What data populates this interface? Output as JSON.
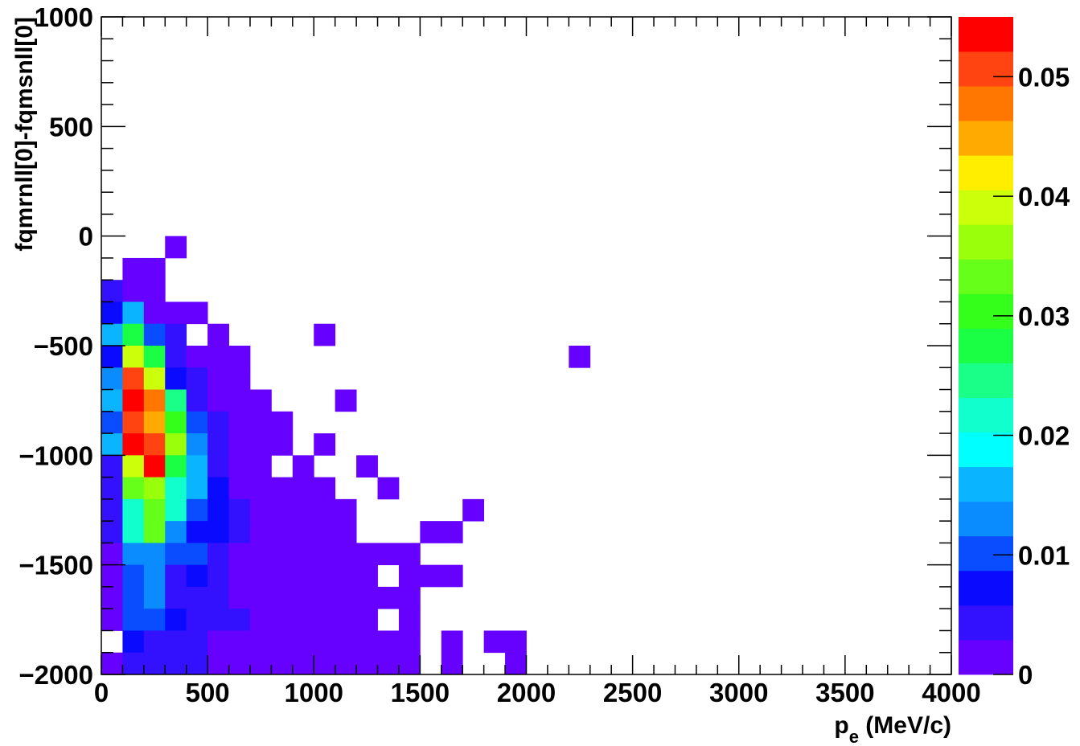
{
  "chart_data": {
    "type": "heatmap",
    "xlabel": "p",
    "xlabel_sub": "e",
    "xlabel_unit": " (MeV/c)",
    "ylabel": "fqmrnll[0]-fqmsnll[0]",
    "x_range": [
      0,
      4000
    ],
    "y_range": [
      -2000,
      1000
    ],
    "bin_width_x": 100,
    "bin_height_y": 100,
    "x_ticks": [
      0,
      500,
      1000,
      1500,
      2000,
      2500,
      3000,
      3500,
      4000
    ],
    "y_ticks": [
      -2000,
      -1500,
      -1000,
      -500,
      0,
      500,
      1000
    ],
    "x_tick_labels": [
      "0",
      "500",
      "1000",
      "1500",
      "2000",
      "2500",
      "3000",
      "3500",
      "4000"
    ],
    "y_tick_labels": [
      "−2000",
      "−1500",
      "−1000",
      "−500",
      "0",
      "500",
      "1000"
    ],
    "z_range": [
      0,
      0.055
    ],
    "z_ticks": [
      0,
      0.01,
      0.02,
      0.03,
      0.04,
      0.05
    ],
    "z_tick_labels": [
      "0",
      "0.01",
      "0.02",
      "0.03",
      "0.04",
      "0.05"
    ],
    "palette": [
      "#6600ff",
      "#3311ff",
      "#0a0aff",
      "#0a4cff",
      "#0a8cff",
      "#0ab4ff",
      "#00ffff",
      "#11ffcc",
      "#1aff88",
      "#1aff44",
      "#33ff1a",
      "#66ff1a",
      "#99ff0a",
      "#ccff0a",
      "#ffee00",
      "#ffaa00",
      "#ff7700",
      "#ff4411",
      "#ff0000"
    ],
    "cells": [
      {
        "x": 300,
        "y": 0,
        "z": 0.001
      },
      {
        "x": 100,
        "y": -100,
        "z": 0.001
      },
      {
        "x": 200,
        "y": -100,
        "z": 0.001
      },
      {
        "x": 0,
        "y": -200,
        "z": 0.003
      },
      {
        "x": 100,
        "y": -200,
        "z": 0.001
      },
      {
        "x": 200,
        "y": -200,
        "z": 0.001
      },
      {
        "x": 0,
        "y": -300,
        "z": 0.006
      },
      {
        "x": 100,
        "y": -300,
        "z": 0.016
      },
      {
        "x": 200,
        "y": -300,
        "z": 0.001
      },
      {
        "x": 300,
        "y": -300,
        "z": 0.001
      },
      {
        "x": 400,
        "y": -300,
        "z": 0.001
      },
      {
        "x": 0,
        "y": -400,
        "z": 0.016
      },
      {
        "x": 100,
        "y": -400,
        "z": 0.027
      },
      {
        "x": 200,
        "y": -400,
        "z": 0.01
      },
      {
        "x": 300,
        "y": -400,
        "z": 0.004
      },
      {
        "x": 500,
        "y": -400,
        "z": 0.001
      },
      {
        "x": 1000,
        "y": -400,
        "z": 0.001
      },
      {
        "x": 0,
        "y": -500,
        "z": 0.007
      },
      {
        "x": 100,
        "y": -500,
        "z": 0.038
      },
      {
        "x": 200,
        "y": -500,
        "z": 0.027
      },
      {
        "x": 300,
        "y": -500,
        "z": 0.004
      },
      {
        "x": 400,
        "y": -500,
        "z": 0.001
      },
      {
        "x": 500,
        "y": -500,
        "z": 0.001
      },
      {
        "x": 600,
        "y": -500,
        "z": 0.001
      },
      {
        "x": 2200,
        "y": -500,
        "z": 0.001
      },
      {
        "x": 0,
        "y": -600,
        "z": 0.013
      },
      {
        "x": 100,
        "y": -600,
        "z": 0.05
      },
      {
        "x": 200,
        "y": -600,
        "z": 0.039
      },
      {
        "x": 300,
        "y": -600,
        "z": 0.007
      },
      {
        "x": 400,
        "y": -600,
        "z": 0.004
      },
      {
        "x": 500,
        "y": -600,
        "z": 0.001
      },
      {
        "x": 600,
        "y": -600,
        "z": 0.001
      },
      {
        "x": 0,
        "y": -700,
        "z": 0.016
      },
      {
        "x": 100,
        "y": -700,
        "z": 0.054
      },
      {
        "x": 200,
        "y": -700,
        "z": 0.047
      },
      {
        "x": 300,
        "y": -700,
        "z": 0.025
      },
      {
        "x": 400,
        "y": -700,
        "z": 0.004
      },
      {
        "x": 500,
        "y": -700,
        "z": 0.001
      },
      {
        "x": 600,
        "y": -700,
        "z": 0.001
      },
      {
        "x": 700,
        "y": -700,
        "z": 0.001
      },
      {
        "x": 1100,
        "y": -700,
        "z": 0.001
      },
      {
        "x": 0,
        "y": -800,
        "z": 0.01
      },
      {
        "x": 100,
        "y": -800,
        "z": 0.05
      },
      {
        "x": 200,
        "y": -800,
        "z": 0.044
      },
      {
        "x": 300,
        "y": -800,
        "z": 0.03
      },
      {
        "x": 400,
        "y": -800,
        "z": 0.01
      },
      {
        "x": 500,
        "y": -800,
        "z": 0.004
      },
      {
        "x": 600,
        "y": -800,
        "z": 0.001
      },
      {
        "x": 700,
        "y": -800,
        "z": 0.001
      },
      {
        "x": 800,
        "y": -800,
        "z": 0.001
      },
      {
        "x": 0,
        "y": -900,
        "z": 0.016
      },
      {
        "x": 100,
        "y": -900,
        "z": 0.054
      },
      {
        "x": 200,
        "y": -900,
        "z": 0.05
      },
      {
        "x": 300,
        "y": -900,
        "z": 0.036
      },
      {
        "x": 400,
        "y": -900,
        "z": 0.013
      },
      {
        "x": 500,
        "y": -900,
        "z": 0.004
      },
      {
        "x": 600,
        "y": -900,
        "z": 0.001
      },
      {
        "x": 700,
        "y": -900,
        "z": 0.001
      },
      {
        "x": 800,
        "y": -900,
        "z": 0.001
      },
      {
        "x": 1000,
        "y": -900,
        "z": 0.001
      },
      {
        "x": 0,
        "y": -1000,
        "z": 0.004
      },
      {
        "x": 100,
        "y": -1000,
        "z": 0.04
      },
      {
        "x": 200,
        "y": -1000,
        "z": 0.054
      },
      {
        "x": 300,
        "y": -1000,
        "z": 0.027
      },
      {
        "x": 400,
        "y": -1000,
        "z": 0.016
      },
      {
        "x": 500,
        "y": -1000,
        "z": 0.004
      },
      {
        "x": 600,
        "y": -1000,
        "z": 0.001
      },
      {
        "x": 700,
        "y": -1000,
        "z": 0.001
      },
      {
        "x": 900,
        "y": -1000,
        "z": 0.001
      },
      {
        "x": 1200,
        "y": -1000,
        "z": 0.001
      },
      {
        "x": 0,
        "y": -1100,
        "z": 0.004
      },
      {
        "x": 100,
        "y": -1100,
        "z": 0.033
      },
      {
        "x": 200,
        "y": -1100,
        "z": 0.036
      },
      {
        "x": 300,
        "y": -1100,
        "z": 0.021
      },
      {
        "x": 400,
        "y": -1100,
        "z": 0.016
      },
      {
        "x": 500,
        "y": -1100,
        "z": 0.007
      },
      {
        "x": 600,
        "y": -1100,
        "z": 0.001
      },
      {
        "x": 700,
        "y": -1100,
        "z": 0.001
      },
      {
        "x": 800,
        "y": -1100,
        "z": 0.001
      },
      {
        "x": 900,
        "y": -1100,
        "z": 0.001
      },
      {
        "x": 1000,
        "y": -1100,
        "z": 0.001
      },
      {
        "x": 1300,
        "y": -1100,
        "z": 0.001
      },
      {
        "x": 0,
        "y": -1200,
        "z": 0.004
      },
      {
        "x": 100,
        "y": -1200,
        "z": 0.021
      },
      {
        "x": 200,
        "y": -1200,
        "z": 0.033
      },
      {
        "x": 300,
        "y": -1200,
        "z": 0.021
      },
      {
        "x": 400,
        "y": -1200,
        "z": 0.01
      },
      {
        "x": 500,
        "y": -1200,
        "z": 0.007
      },
      {
        "x": 600,
        "y": -1200,
        "z": 0.004
      },
      {
        "x": 700,
        "y": -1200,
        "z": 0.001
      },
      {
        "x": 800,
        "y": -1200,
        "z": 0.001
      },
      {
        "x": 900,
        "y": -1200,
        "z": 0.001
      },
      {
        "x": 1000,
        "y": -1200,
        "z": 0.001
      },
      {
        "x": 1100,
        "y": -1200,
        "z": 0.001
      },
      {
        "x": 1700,
        "y": -1200,
        "z": 0.001
      },
      {
        "x": 0,
        "y": -1300,
        "z": 0.004
      },
      {
        "x": 100,
        "y": -1300,
        "z": 0.021
      },
      {
        "x": 200,
        "y": -1300,
        "z": 0.033
      },
      {
        "x": 300,
        "y": -1300,
        "z": 0.013
      },
      {
        "x": 400,
        "y": -1300,
        "z": 0.007
      },
      {
        "x": 500,
        "y": -1300,
        "z": 0.007
      },
      {
        "x": 600,
        "y": -1300,
        "z": 0.004
      },
      {
        "x": 700,
        "y": -1300,
        "z": 0.001
      },
      {
        "x": 800,
        "y": -1300,
        "z": 0.001
      },
      {
        "x": 900,
        "y": -1300,
        "z": 0.001
      },
      {
        "x": 1000,
        "y": -1300,
        "z": 0.001
      },
      {
        "x": 1100,
        "y": -1300,
        "z": 0.001
      },
      {
        "x": 1500,
        "y": -1300,
        "z": 0.001
      },
      {
        "x": 1600,
        "y": -1300,
        "z": 0.001
      },
      {
        "x": 0,
        "y": -1400,
        "z": 0.001
      },
      {
        "x": 100,
        "y": -1400,
        "z": 0.013
      },
      {
        "x": 200,
        "y": -1400,
        "z": 0.013
      },
      {
        "x": 300,
        "y": -1400,
        "z": 0.01
      },
      {
        "x": 400,
        "y": -1400,
        "z": 0.01
      },
      {
        "x": 500,
        "y": -1400,
        "z": 0.004
      },
      {
        "x": 600,
        "y": -1400,
        "z": 0.001
      },
      {
        "x": 700,
        "y": -1400,
        "z": 0.001
      },
      {
        "x": 800,
        "y": -1400,
        "z": 0.001
      },
      {
        "x": 900,
        "y": -1400,
        "z": 0.001
      },
      {
        "x": 1000,
        "y": -1400,
        "z": 0.001
      },
      {
        "x": 1100,
        "y": -1400,
        "z": 0.001
      },
      {
        "x": 1200,
        "y": -1400,
        "z": 0.001
      },
      {
        "x": 1300,
        "y": -1400,
        "z": 0.001
      },
      {
        "x": 1400,
        "y": -1400,
        "z": 0.001
      },
      {
        "x": 0,
        "y": -1500,
        "z": 0.001
      },
      {
        "x": 100,
        "y": -1500,
        "z": 0.01
      },
      {
        "x": 200,
        "y": -1500,
        "z": 0.013
      },
      {
        "x": 300,
        "y": -1500,
        "z": 0.004
      },
      {
        "x": 400,
        "y": -1500,
        "z": 0.007
      },
      {
        "x": 500,
        "y": -1500,
        "z": 0.004
      },
      {
        "x": 600,
        "y": -1500,
        "z": 0.001
      },
      {
        "x": 700,
        "y": -1500,
        "z": 0.001
      },
      {
        "x": 800,
        "y": -1500,
        "z": 0.001
      },
      {
        "x": 900,
        "y": -1500,
        "z": 0.001
      },
      {
        "x": 1000,
        "y": -1500,
        "z": 0.001
      },
      {
        "x": 1100,
        "y": -1500,
        "z": 0.001
      },
      {
        "x": 1200,
        "y": -1500,
        "z": 0.001
      },
      {
        "x": 1400,
        "y": -1500,
        "z": 0.001
      },
      {
        "x": 1500,
        "y": -1500,
        "z": 0.001
      },
      {
        "x": 1600,
        "y": -1500,
        "z": 0.001
      },
      {
        "x": 0,
        "y": -1600,
        "z": 0.001
      },
      {
        "x": 100,
        "y": -1600,
        "z": 0.01
      },
      {
        "x": 200,
        "y": -1600,
        "z": 0.013
      },
      {
        "x": 300,
        "y": -1600,
        "z": 0.004
      },
      {
        "x": 400,
        "y": -1600,
        "z": 0.004
      },
      {
        "x": 500,
        "y": -1600,
        "z": 0.004
      },
      {
        "x": 600,
        "y": -1600,
        "z": 0.001
      },
      {
        "x": 700,
        "y": -1600,
        "z": 0.001
      },
      {
        "x": 800,
        "y": -1600,
        "z": 0.001
      },
      {
        "x": 900,
        "y": -1600,
        "z": 0.001
      },
      {
        "x": 1000,
        "y": -1600,
        "z": 0.001
      },
      {
        "x": 1100,
        "y": -1600,
        "z": 0.001
      },
      {
        "x": 1200,
        "y": -1600,
        "z": 0.001
      },
      {
        "x": 1300,
        "y": -1600,
        "z": 0.001
      },
      {
        "x": 1400,
        "y": -1600,
        "z": 0.001
      },
      {
        "x": 0,
        "y": -1700,
        "z": 0.001
      },
      {
        "x": 100,
        "y": -1700,
        "z": 0.01
      },
      {
        "x": 200,
        "y": -1700,
        "z": 0.01
      },
      {
        "x": 300,
        "y": -1700,
        "z": 0.007
      },
      {
        "x": 400,
        "y": -1700,
        "z": 0.004
      },
      {
        "x": 500,
        "y": -1700,
        "z": 0.004
      },
      {
        "x": 600,
        "y": -1700,
        "z": 0.004
      },
      {
        "x": 700,
        "y": -1700,
        "z": 0.001
      },
      {
        "x": 800,
        "y": -1700,
        "z": 0.001
      },
      {
        "x": 900,
        "y": -1700,
        "z": 0.001
      },
      {
        "x": 1000,
        "y": -1700,
        "z": 0.001
      },
      {
        "x": 1100,
        "y": -1700,
        "z": 0.001
      },
      {
        "x": 1200,
        "y": -1700,
        "z": 0.001
      },
      {
        "x": 1400,
        "y": -1700,
        "z": 0.001
      },
      {
        "x": 100,
        "y": -1800,
        "z": 0.007
      },
      {
        "x": 200,
        "y": -1800,
        "z": 0.004
      },
      {
        "x": 300,
        "y": -1800,
        "z": 0.004
      },
      {
        "x": 400,
        "y": -1800,
        "z": 0.004
      },
      {
        "x": 500,
        "y": -1800,
        "z": 0.001
      },
      {
        "x": 600,
        "y": -1800,
        "z": 0.001
      },
      {
        "x": 700,
        "y": -1800,
        "z": 0.001
      },
      {
        "x": 800,
        "y": -1800,
        "z": 0.001
      },
      {
        "x": 900,
        "y": -1800,
        "z": 0.001
      },
      {
        "x": 1000,
        "y": -1800,
        "z": 0.001
      },
      {
        "x": 1100,
        "y": -1800,
        "z": 0.001
      },
      {
        "x": 1200,
        "y": -1800,
        "z": 0.001
      },
      {
        "x": 1300,
        "y": -1800,
        "z": 0.001
      },
      {
        "x": 1400,
        "y": -1800,
        "z": 0.001
      },
      {
        "x": 1600,
        "y": -1800,
        "z": 0.001
      },
      {
        "x": 1800,
        "y": -1800,
        "z": 0.001
      },
      {
        "x": 1900,
        "y": -1800,
        "z": 0.001
      },
      {
        "x": 0,
        "y": -1900,
        "z": 0.001
      },
      {
        "x": 100,
        "y": -1900,
        "z": 0.004
      },
      {
        "x": 200,
        "y": -1900,
        "z": 0.004
      },
      {
        "x": 300,
        "y": -1900,
        "z": 0.004
      },
      {
        "x": 400,
        "y": -1900,
        "z": 0.004
      },
      {
        "x": 500,
        "y": -1900,
        "z": 0.001
      },
      {
        "x": 600,
        "y": -1900,
        "z": 0.001
      },
      {
        "x": 700,
        "y": -1900,
        "z": 0.001
      },
      {
        "x": 800,
        "y": -1900,
        "z": 0.001
      },
      {
        "x": 900,
        "y": -1900,
        "z": 0.001
      },
      {
        "x": 1000,
        "y": -1900,
        "z": 0.001
      },
      {
        "x": 1100,
        "y": -1900,
        "z": 0.001
      },
      {
        "x": 1200,
        "y": -1900,
        "z": 0.001
      },
      {
        "x": 1300,
        "y": -1900,
        "z": 0.001
      },
      {
        "x": 1400,
        "y": -1900,
        "z": 0.001
      },
      {
        "x": 1600,
        "y": -1900,
        "z": 0.001
      },
      {
        "x": 1900,
        "y": -1900,
        "z": 0.001
      }
    ]
  }
}
